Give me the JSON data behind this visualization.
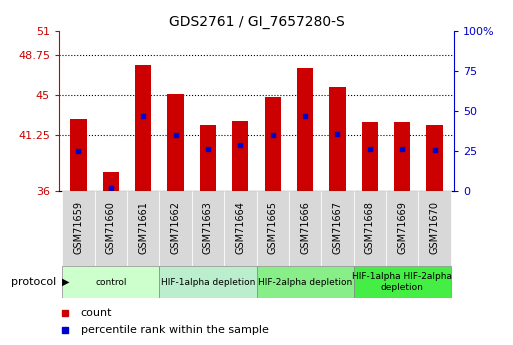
{
  "title": "GDS2761 / GI_7657280-S",
  "samples": [
    "GSM71659",
    "GSM71660",
    "GSM71661",
    "GSM71662",
    "GSM71663",
    "GSM71664",
    "GSM71665",
    "GSM71666",
    "GSM71667",
    "GSM71668",
    "GSM71669",
    "GSM71670"
  ],
  "bar_tops": [
    42.8,
    37.8,
    47.8,
    45.1,
    42.2,
    42.6,
    44.8,
    47.5,
    45.8,
    42.5,
    42.5,
    42.2
  ],
  "bar_bottoms": [
    36.0,
    36.0,
    36.0,
    36.0,
    36.0,
    36.0,
    36.0,
    36.0,
    36.0,
    36.0,
    36.0,
    36.0
  ],
  "percentile_positions": [
    39.8,
    36.35,
    43.1,
    41.3,
    39.95,
    40.3,
    41.3,
    43.1,
    41.35,
    40.0,
    39.95,
    39.9
  ],
  "bar_color": "#cc0000",
  "percentile_color": "#0000cc",
  "ylim_left": [
    36,
    51
  ],
  "ylim_right": [
    0,
    100
  ],
  "yticks_left": [
    36,
    41.25,
    45,
    48.75,
    51
  ],
  "yticks_right": [
    0,
    25,
    50,
    75,
    100
  ],
  "ytick_labels_left": [
    "36",
    "41.25",
    "45",
    "48.75",
    "51"
  ],
  "ytick_labels_right": [
    "0",
    "25",
    "50",
    "75",
    "100%"
  ],
  "group_starts": [
    0,
    3,
    6,
    9
  ],
  "group_ends": [
    2,
    5,
    8,
    11
  ],
  "group_labels": [
    "control",
    "HIF-1alpha depletion",
    "HIF-2alpha depletion",
    "HIF-1alpha HIF-2alpha\ndepletion"
  ],
  "group_colors": [
    "#ccffcc",
    "#bbeecc",
    "#88ee88",
    "#44ee44"
  ],
  "protocol_label": "protocol",
  "legend_count_label": "count",
  "legend_pct_label": "percentile rank within the sample",
  "bar_width": 0.5,
  "background_color": "#ffffff",
  "xtick_bg_color": "#d8d8d8",
  "gridlines": [
    41.25,
    45,
    48.75
  ]
}
